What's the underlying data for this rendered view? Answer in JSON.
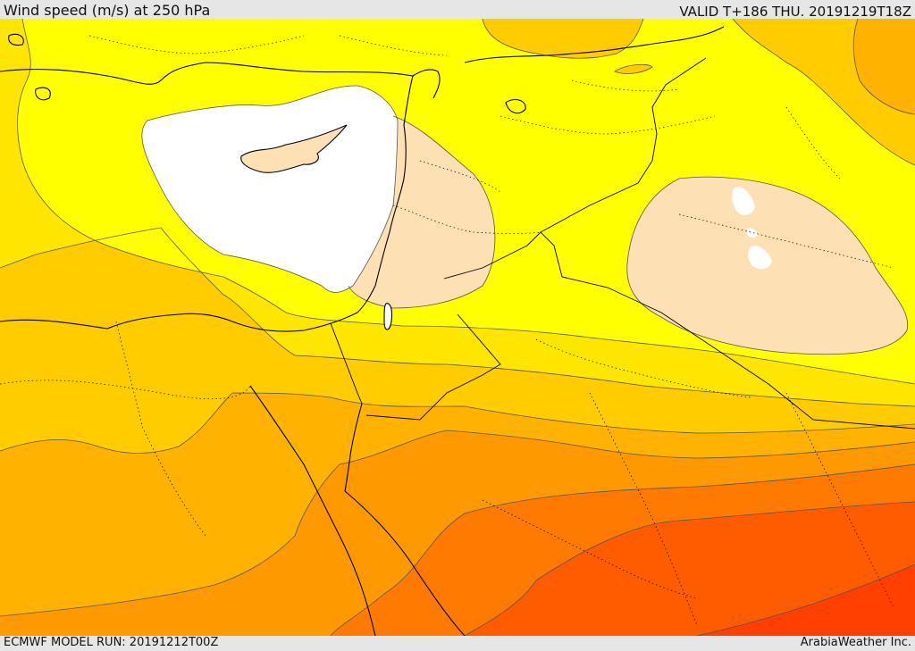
{
  "header": {
    "title": "Wind speed (m/s) at 250 hPa",
    "valid": "VALID T+186 THU. 20191219T18Z"
  },
  "footer": {
    "model_run": "ECMWF MODEL RUN: 20191212T00Z",
    "credit": "ArabiaWeather Inc."
  },
  "map": {
    "field": "Wind speed",
    "colors": {
      "below_lowest": "#ffffff",
      "band_1": "#fde0b4",
      "band_2": "#ffff00",
      "band_3": "#ffe600",
      "band_4": "#ffcc00",
      "band_5": "#ffb300",
      "band_6": "#ff9900",
      "band_7": "#ff7a00",
      "band_8": "#ff5c00",
      "band_9": "#ff4000",
      "coastline": "#000000",
      "borders": "#000000"
    }
  }
}
